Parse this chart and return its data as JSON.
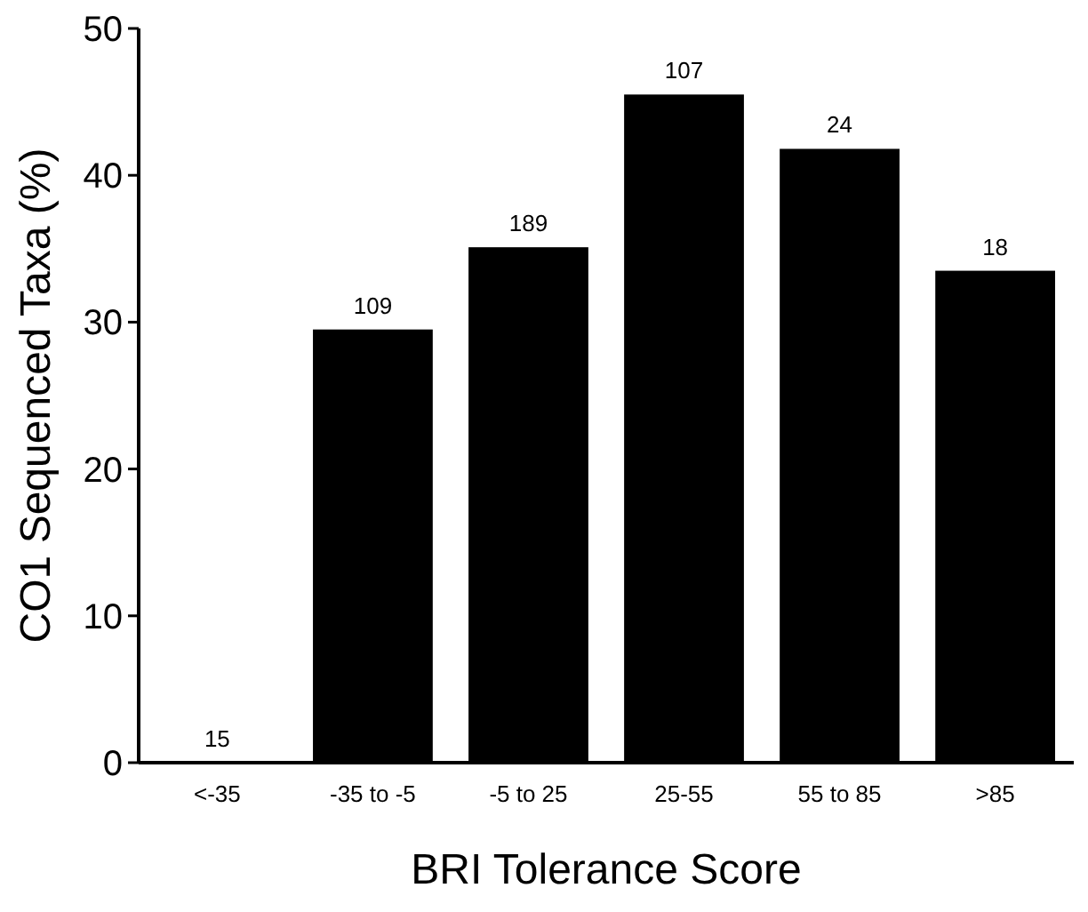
{
  "chart_data": {
    "type": "bar",
    "xlabel": "BRI Tolerance Score",
    "ylabel": "CO1 Sequenced Taxa (%)",
    "categories": [
      "<-35",
      "-35 to -5",
      "-5 to 25",
      "25-55",
      "55 to 85",
      ">85"
    ],
    "values": [
      0,
      29.5,
      35.1,
      45.5,
      41.8,
      33.5
    ],
    "annotations": [
      {
        "text": "15",
        "x": "<-35",
        "y": 0
      },
      {
        "text": "109",
        "x": "-35 to -5",
        "y": 29.5
      },
      {
        "text": "189",
        "x": "-5 to 25",
        "y": 35.1
      },
      {
        "text": "107",
        "x": "25-55",
        "y": 45.5
      },
      {
        "text": "24",
        "x": "55 to 85",
        "y": 41.8
      },
      {
        "text": "18",
        "x": ">85",
        "y": 33.5
      }
    ],
    "color": "#000000",
    "ylim": [
      0,
      50
    ],
    "yticks": [
      0,
      10,
      20,
      30,
      40,
      50
    ],
    "grid": false
  }
}
